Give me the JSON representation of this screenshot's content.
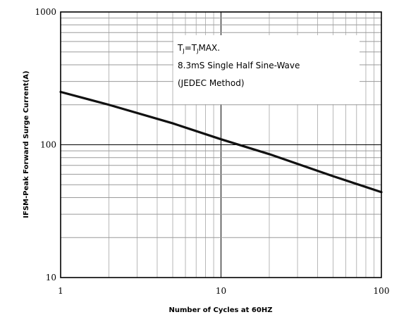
{
  "chart_data": {
    "type": "line",
    "xscale": "log",
    "yscale": "log",
    "xlim": [
      1,
      100
    ],
    "ylim": [
      10,
      1000
    ],
    "xlabel": "Number of Cycles at 60HZ",
    "ylabel": "IFSM-Peak Forward Surge Current(A)",
    "x_ticks": [
      {
        "value": 1,
        "label": "1"
      },
      {
        "value": 10,
        "label": "10"
      },
      {
        "value": 100,
        "label": "100"
      }
    ],
    "y_ticks": [
      {
        "value": 10,
        "label": "10"
      },
      {
        "value": 100,
        "label": "100"
      },
      {
        "value": 1000,
        "label": "1000"
      }
    ],
    "grid": true,
    "annotation": {
      "line1_main": "T",
      "line1_sub1": "J",
      "line1_mid": "=T",
      "line1_sub2": "J",
      "line1_end": "MAX.",
      "line2": "8.3mS Single Half Sine-Wave",
      "line3": "(JEDEC Method)"
    },
    "series": [
      {
        "x": [
          1,
          2,
          5,
          10,
          20,
          50,
          100
        ],
        "y": [
          250,
          200,
          145,
          110,
          85,
          58,
          44
        ]
      }
    ],
    "colors": {
      "line": "#111111",
      "grid_major": "#000000",
      "grid_minor": "#9a9a9a"
    }
  }
}
